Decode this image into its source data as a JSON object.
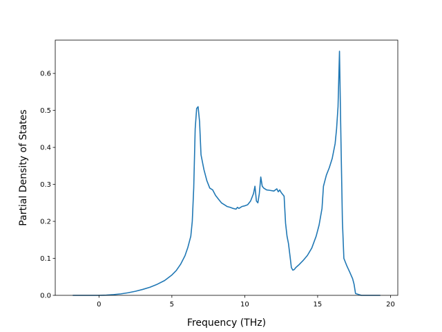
{
  "chart_data": {
    "type": "line",
    "title": "",
    "xlabel": "Frequency (THz)",
    "ylabel": "Partial Density of States",
    "xlim": [
      -3.0,
      20.5
    ],
    "ylim": [
      0.0,
      0.69
    ],
    "xticks": [
      0,
      5,
      10,
      15,
      20
    ],
    "yticks": [
      0.0,
      0.1,
      0.2,
      0.3,
      0.4,
      0.5,
      0.6
    ],
    "grid": false,
    "legend": "none",
    "line_color": "#1f77b4",
    "series": [
      {
        "x": [
          -1.8,
          -1.0,
          0.0,
          0.5,
          1.0,
          1.5,
          2.0,
          2.5,
          3.0,
          3.5,
          4.0,
          4.5,
          5.0,
          5.3,
          5.6,
          5.9,
          6.1,
          6.3,
          6.4,
          6.5,
          6.6,
          6.7,
          6.8,
          6.9,
          7.0,
          7.2,
          7.4,
          7.6,
          7.8,
          8.0,
          8.2,
          8.4,
          8.6,
          8.8,
          9.0,
          9.2,
          9.4,
          9.5,
          9.6,
          9.8,
          10.0,
          10.2,
          10.4,
          10.5,
          10.6,
          10.7,
          10.8,
          10.9,
          11.0,
          11.1,
          11.2,
          11.3,
          11.5,
          11.7,
          12.0,
          12.2,
          12.3,
          12.4,
          12.5,
          12.7,
          12.8,
          12.9,
          13.0,
          13.1,
          13.2,
          13.3,
          13.4,
          13.5,
          13.7,
          14.0,
          14.3,
          14.6,
          14.9,
          15.1,
          15.3,
          15.4,
          15.5,
          15.6,
          15.8,
          16.0,
          16.2,
          16.3,
          16.4,
          16.5,
          16.6,
          16.7,
          16.8,
          16.9,
          17.0,
          17.2,
          17.4,
          17.5,
          17.6,
          18.0,
          19.3
        ],
        "y": [
          0.0,
          0.0,
          0.0,
          0.0005,
          0.002,
          0.004,
          0.007,
          0.011,
          0.016,
          0.022,
          0.03,
          0.04,
          0.055,
          0.067,
          0.084,
          0.107,
          0.13,
          0.16,
          0.2,
          0.29,
          0.45,
          0.505,
          0.51,
          0.47,
          0.38,
          0.34,
          0.31,
          0.29,
          0.285,
          0.27,
          0.26,
          0.25,
          0.245,
          0.24,
          0.238,
          0.235,
          0.233,
          0.238,
          0.235,
          0.24,
          0.242,
          0.245,
          0.255,
          0.265,
          0.275,
          0.295,
          0.255,
          0.25,
          0.275,
          0.32,
          0.295,
          0.29,
          0.285,
          0.284,
          0.282,
          0.288,
          0.28,
          0.285,
          0.278,
          0.268,
          0.195,
          0.16,
          0.14,
          0.108,
          0.075,
          0.068,
          0.07,
          0.075,
          0.082,
          0.094,
          0.108,
          0.128,
          0.16,
          0.19,
          0.235,
          0.295,
          0.31,
          0.325,
          0.345,
          0.37,
          0.41,
          0.45,
          0.51,
          0.66,
          0.42,
          0.2,
          0.1,
          0.09,
          0.08,
          0.063,
          0.045,
          0.03,
          0.005,
          0.0,
          0.0
        ]
      }
    ]
  }
}
